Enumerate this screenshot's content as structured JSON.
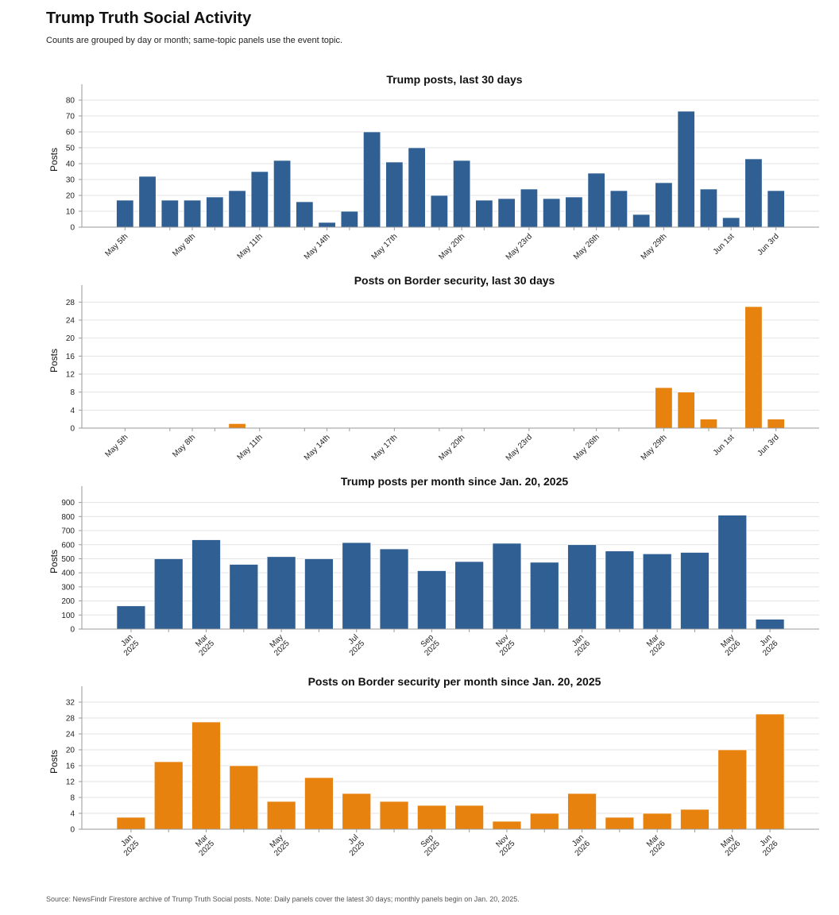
{
  "header": {
    "title": "Trump Truth Social Activity",
    "subtitle": "Counts are grouped by day or month; same-topic panels use the event topic."
  },
  "footnote": "Source: NewsFindr Firestore archive of Trump Truth Social posts. Note: Daily panels cover the latest 30 days; monthly panels begin on Jan. 20, 2025.",
  "colors": {
    "total": "#2f5f93",
    "topic": "#e8820e"
  },
  "chart_data": [
    {
      "type": "bar",
      "title": "Trump posts, last 30 days",
      "ylabel": "Posts",
      "xlabel": "",
      "color": "#2f5f93",
      "categories": [
        "May 5th",
        "May 6th",
        "May 7th",
        "May 8th",
        "May 9th",
        "May 10th",
        "May 11th",
        "May 12th",
        "May 13th",
        "May 14th",
        "May 15th",
        "May 16th",
        "May 17th",
        "May 18th",
        "May 19th",
        "May 20th",
        "May 21st",
        "May 22nd",
        "May 23rd",
        "May 24th",
        "May 25th",
        "May 26th",
        "May 27th",
        "May 28th",
        "May 29th",
        "May 30th",
        "May 31st",
        "Jun 1st",
        "Jun 2nd",
        "Jun 3rd"
      ],
      "values": [
        17,
        32,
        17,
        17,
        19,
        23,
        35,
        42,
        16,
        3,
        10,
        60,
        41,
        50,
        20,
        42,
        17,
        18,
        24,
        18,
        19,
        34,
        23,
        8,
        28,
        73,
        24,
        6,
        43,
        23
      ],
      "tick_labels": [
        {
          "index": 0,
          "label": "May 5th"
        },
        {
          "index": 3,
          "label": "May 8th"
        },
        {
          "index": 6,
          "label": "May 11th"
        },
        {
          "index": 9,
          "label": "May 14th"
        },
        {
          "index": 12,
          "label": "May 17th"
        },
        {
          "index": 15,
          "label": "May 20th"
        },
        {
          "index": 18,
          "label": "May 23rd"
        },
        {
          "index": 21,
          "label": "May 26th"
        },
        {
          "index": 24,
          "label": "May 29th"
        },
        {
          "index": 27,
          "label": "Jun 1st"
        },
        {
          "index": 29,
          "label": "Jun 3rd"
        }
      ],
      "ylim": [
        0,
        85
      ],
      "yticks": [
        0,
        10,
        20,
        30,
        40,
        50,
        60,
        70,
        80
      ],
      "grid": true
    },
    {
      "type": "bar",
      "title": "Posts on Border security, last 30 days",
      "ylabel": "Posts",
      "xlabel": "",
      "color": "#e8820e",
      "categories": [
        "May 5th",
        "May 6th",
        "May 7th",
        "May 8th",
        "May 9th",
        "May 10th",
        "May 11th",
        "May 12th",
        "May 13th",
        "May 14th",
        "May 15th",
        "May 16th",
        "May 17th",
        "May 18th",
        "May 19th",
        "May 20th",
        "May 21st",
        "May 22nd",
        "May 23rd",
        "May 24th",
        "May 25th",
        "May 26th",
        "May 27th",
        "May 28th",
        "May 29th",
        "May 30th",
        "May 31st",
        "Jun 1st",
        "Jun 2nd",
        "Jun 3rd"
      ],
      "values": [
        0,
        0,
        0,
        0,
        0,
        1,
        0,
        0,
        0,
        0,
        0,
        0,
        0,
        0,
        0,
        0,
        0,
        0,
        0,
        0,
        0,
        0,
        0,
        0,
        9,
        8,
        2,
        0,
        27,
        2
      ],
      "tick_labels": [
        {
          "index": 0,
          "label": "May 5th"
        },
        {
          "index": 3,
          "label": "May 8th"
        },
        {
          "index": 6,
          "label": "May 11th"
        },
        {
          "index": 9,
          "label": "May 14th"
        },
        {
          "index": 12,
          "label": "May 17th"
        },
        {
          "index": 15,
          "label": "May 20th"
        },
        {
          "index": 18,
          "label": "May 23rd"
        },
        {
          "index": 21,
          "label": "May 26th"
        },
        {
          "index": 24,
          "label": "May 29th"
        },
        {
          "index": 27,
          "label": "Jun 1st"
        },
        {
          "index": 29,
          "label": "Jun 3rd"
        }
      ],
      "ylim": [
        0,
        30
      ],
      "yticks": [
        0,
        4,
        8,
        12,
        16,
        20,
        24,
        28
      ],
      "grid": true
    },
    {
      "type": "bar",
      "title": "Trump posts per month since Jan. 20, 2025",
      "ylabel": "Posts",
      "xlabel": "",
      "color": "#2f5f93",
      "categories": [
        "Jan 2025",
        "Feb 2025",
        "Mar 2025",
        "Apr 2025",
        "May 2025",
        "Jun 2025",
        "Jul 2025",
        "Aug 2025",
        "Sep 2025",
        "Oct 2025",
        "Nov 2025",
        "Dec 2025",
        "Jan 2026",
        "Feb 2026",
        "Mar 2026",
        "Apr 2026",
        "May 2026",
        "Jun 2026"
      ],
      "values": [
        165,
        500,
        635,
        460,
        515,
        500,
        615,
        570,
        415,
        480,
        610,
        475,
        600,
        555,
        535,
        545,
        810,
        70
      ],
      "tick_labels": [
        {
          "index": 0,
          "label": "Jan\n2025"
        },
        {
          "index": 2,
          "label": "Mar\n2025"
        },
        {
          "index": 4,
          "label": "May\n2025"
        },
        {
          "index": 6,
          "label": "Jul\n2025"
        },
        {
          "index": 8,
          "label": "Sep\n2025"
        },
        {
          "index": 10,
          "label": "Nov\n2025"
        },
        {
          "index": 12,
          "label": "Jan\n2026"
        },
        {
          "index": 14,
          "label": "Mar\n2026"
        },
        {
          "index": 16,
          "label": "May\n2026"
        },
        {
          "index": 17,
          "label": "Jun\n2026"
        }
      ],
      "ylim": [
        0,
        960
      ],
      "yticks": [
        0,
        100,
        200,
        300,
        400,
        500,
        600,
        700,
        800,
        900
      ],
      "grid": true
    },
    {
      "type": "bar",
      "title": "Posts on Border security per month since Jan. 20, 2025",
      "ylabel": "Posts",
      "xlabel": "",
      "color": "#e8820e",
      "categories": [
        "Jan 2025",
        "Feb 2025",
        "Mar 2025",
        "Apr 2025",
        "May 2025",
        "Jun 2025",
        "Jul 2025",
        "Aug 2025",
        "Sep 2025",
        "Oct 2025",
        "Nov 2025",
        "Dec 2025",
        "Jan 2026",
        "Feb 2026",
        "Mar 2026",
        "Apr 2026",
        "May 2026",
        "Jun 2026"
      ],
      "values": [
        3,
        17,
        27,
        16,
        7,
        13,
        9,
        7,
        6,
        6,
        2,
        4,
        9,
        3,
        4,
        5,
        20,
        29
      ],
      "tick_labels": [
        {
          "index": 0,
          "label": "Jan\n2025"
        },
        {
          "index": 2,
          "label": "Mar\n2025"
        },
        {
          "index": 4,
          "label": "May\n2025"
        },
        {
          "index": 6,
          "label": "Jul\n2025"
        },
        {
          "index": 8,
          "label": "Sep\n2025"
        },
        {
          "index": 10,
          "label": "Nov\n2025"
        },
        {
          "index": 12,
          "label": "Jan\n2026"
        },
        {
          "index": 14,
          "label": "Mar\n2026"
        },
        {
          "index": 16,
          "label": "May\n2026"
        },
        {
          "index": 17,
          "label": "Jun\n2026"
        }
      ],
      "ylim": [
        0,
        34
      ],
      "yticks": [
        0,
        4,
        8,
        12,
        16,
        20,
        24,
        28,
        32
      ],
      "grid": true
    }
  ]
}
